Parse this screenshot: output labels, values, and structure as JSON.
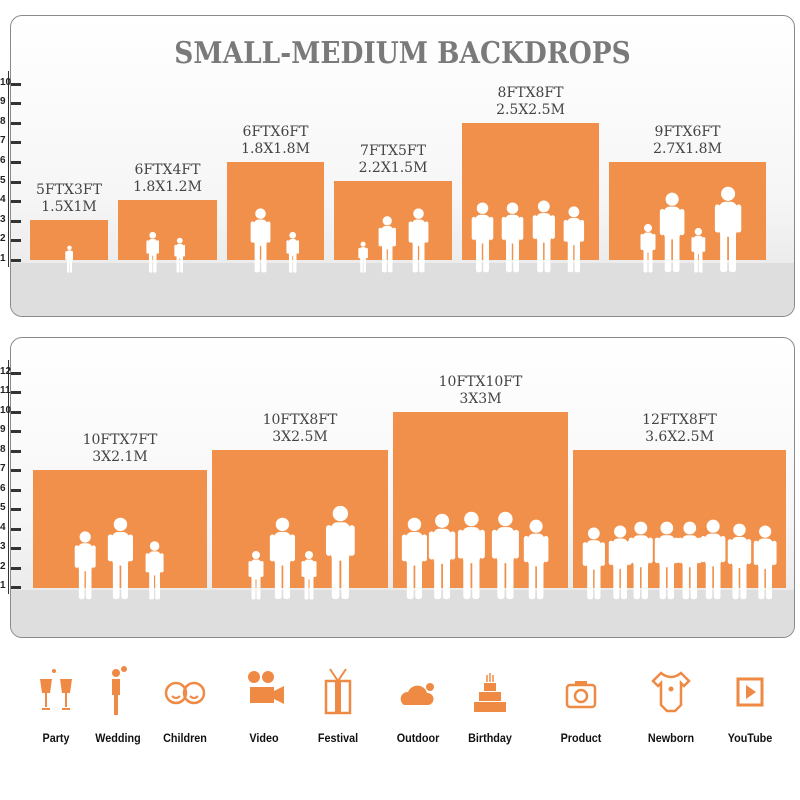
{
  "top_panel": {
    "title": "SMALL-MEDIUM BACKDROPS",
    "scale_ticks": [
      "1",
      "2",
      "3",
      "4",
      "5",
      "6",
      "7",
      "8",
      "9",
      "10"
    ],
    "sizes": [
      {
        "ft": "5FTX3FT",
        "m": "1.5X1M",
        "width_ft": 5,
        "height_ft": 3
      },
      {
        "ft": "6FTX4FT",
        "m": "1.8X1.2M",
        "width_ft": 6,
        "height_ft": 4
      },
      {
        "ft": "6FTX6FT",
        "m": "1.8X1.8M",
        "width_ft": 6,
        "height_ft": 6
      },
      {
        "ft": "7FTX5FT",
        "m": "2.2X1.5M",
        "width_ft": 7,
        "height_ft": 5
      },
      {
        "ft": "8FTX8FT",
        "m": "2.5X2.5M",
        "width_ft": 8,
        "height_ft": 8
      },
      {
        "ft": "9FTX6FT",
        "m": "2.7X1.8M",
        "width_ft": 9,
        "height_ft": 6
      }
    ]
  },
  "bottom_panel": {
    "scale_ticks": [
      "1",
      "2",
      "3",
      "4",
      "5",
      "6",
      "7",
      "8",
      "9",
      "10",
      "11",
      "12"
    ],
    "sizes": [
      {
        "ft": "10FTX7FT",
        "m": "3X2.1M",
        "width_ft": 10,
        "height_ft": 7
      },
      {
        "ft": "10FTX8FT",
        "m": "3X2.5M",
        "width_ft": 10,
        "height_ft": 8
      },
      {
        "ft": "10FTX10FT",
        "m": "3X3M",
        "width_ft": 10,
        "height_ft": 10
      },
      {
        "ft": "12FTX8FT",
        "m": "3.6X2.5M",
        "width_ft": 12,
        "height_ft": 8
      }
    ]
  },
  "uses": [
    {
      "label": "Party",
      "icon": "champagne-glasses-icon"
    },
    {
      "label": "Wedding",
      "icon": "wedding-couple-icon"
    },
    {
      "label": "Children",
      "icon": "children-faces-icon"
    },
    {
      "label": "Video",
      "icon": "video-camera-icon"
    },
    {
      "label": "Festival",
      "icon": "gift-box-icon"
    },
    {
      "label": "Outdoor",
      "icon": "cloud-icon"
    },
    {
      "label": "Birthday",
      "icon": "birthday-cake-icon"
    },
    {
      "label": "Product",
      "icon": "camera-icon"
    },
    {
      "label": "Newborn",
      "icon": "baby-onesie-icon"
    },
    {
      "label": "YouTube",
      "icon": "play-button-icon"
    }
  ],
  "colors": {
    "accent": "#f0904a",
    "title": "#7a7a7a"
  }
}
